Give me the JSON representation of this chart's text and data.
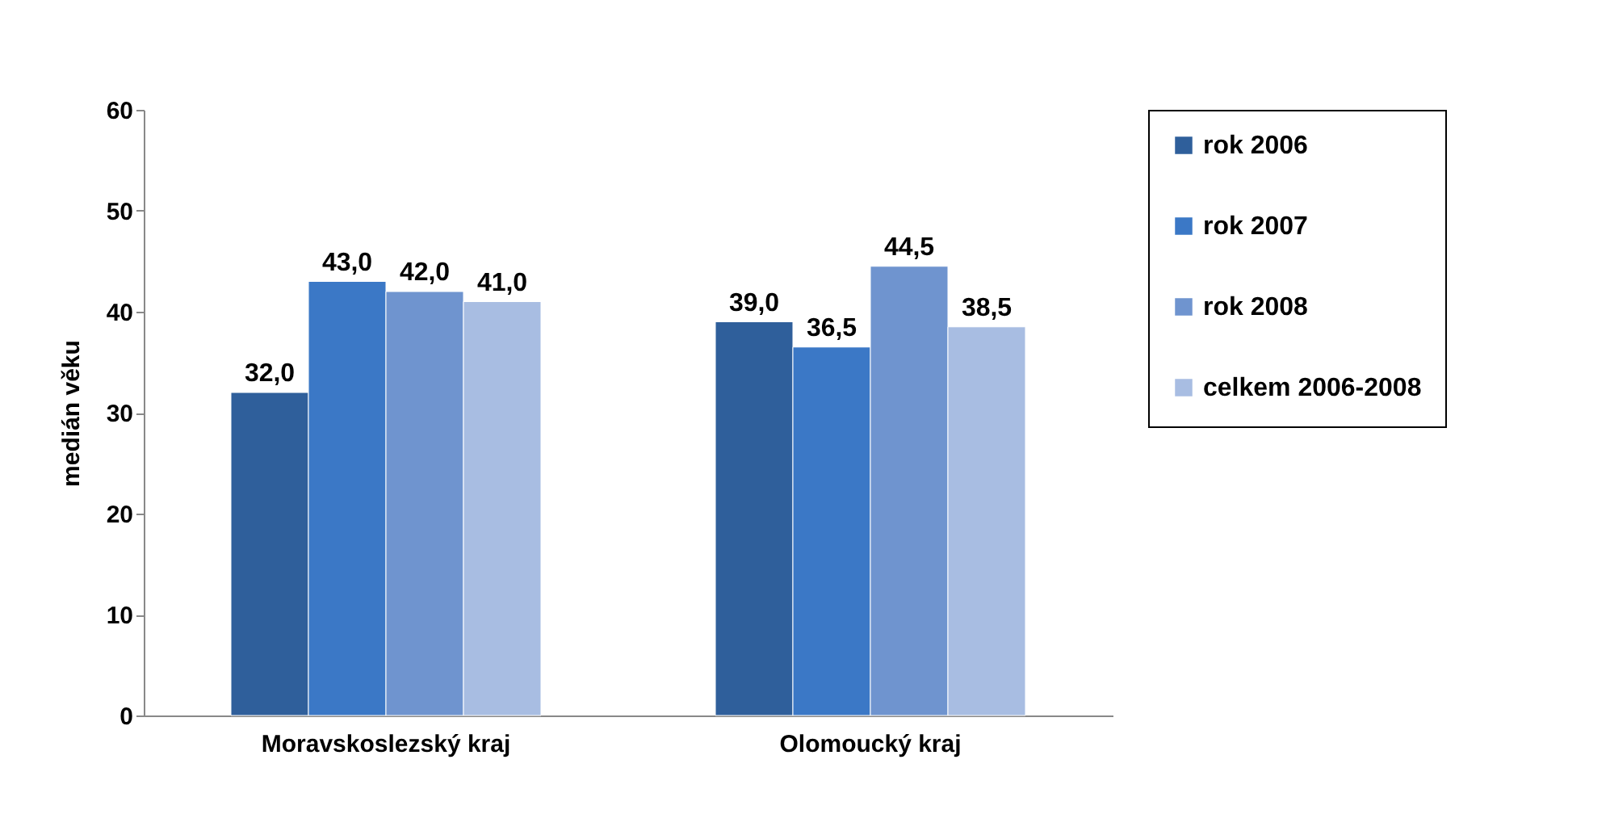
{
  "chart_data": {
    "type": "bar",
    "ylabel": "medián věku",
    "categories": [
      "Moravskoslezský kraj",
      "Olomoucký kraj"
    ],
    "series": [
      {
        "name": "rok 2006",
        "color": "#2f5f9b",
        "values": [
          32.0,
          39.0
        ],
        "value_labels": [
          "32,0",
          "39,0"
        ]
      },
      {
        "name": "rok 2007",
        "color": "#3b78c6",
        "values": [
          43.0,
          36.5
        ],
        "value_labels": [
          "43,0",
          "36,5"
        ]
      },
      {
        "name": "rok 2008",
        "color": "#6f94cf",
        "values": [
          42.0,
          44.5
        ],
        "value_labels": [
          "42,0",
          "44,5"
        ]
      },
      {
        "name": "celkem 2006-2008",
        "color": "#a8bde2",
        "values": [
          41.0,
          38.5
        ],
        "value_labels": [
          "41,0",
          "38,5"
        ]
      }
    ],
    "ylim": [
      0,
      60
    ],
    "yticks": [
      0,
      10,
      20,
      30,
      40,
      50,
      60
    ],
    "grid": false,
    "legend": "right"
  }
}
